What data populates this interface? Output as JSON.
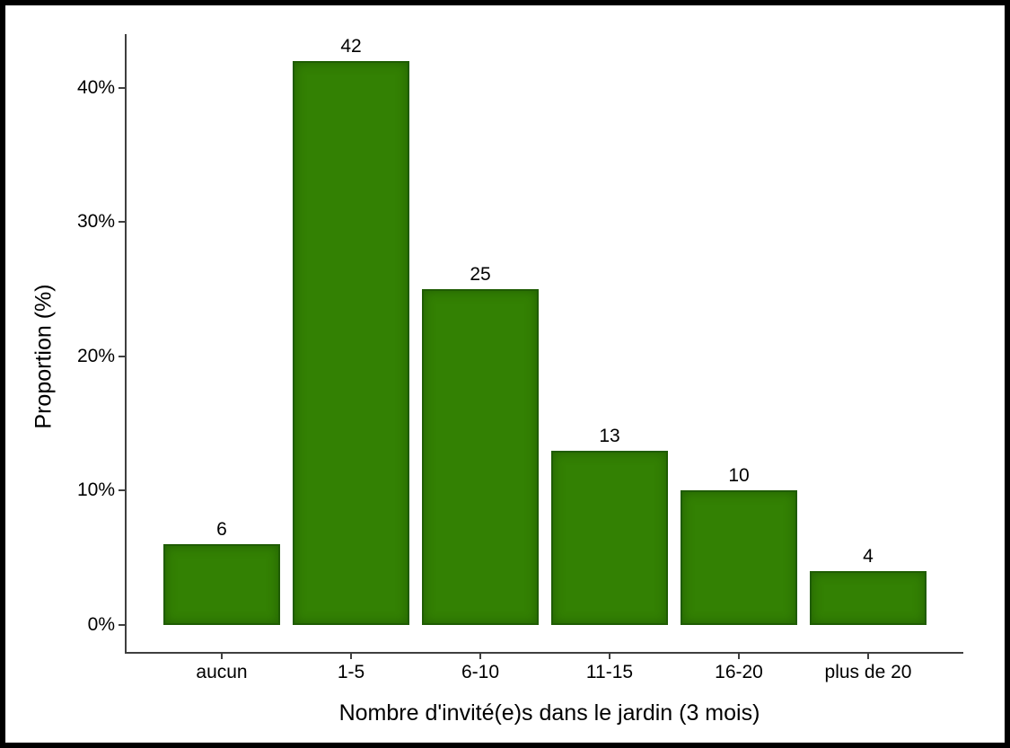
{
  "chart_data": {
    "type": "bar",
    "title": "",
    "categories": [
      "aucun",
      "1-5",
      "6-10",
      "11-15",
      "16-20",
      "plus de 20"
    ],
    "values": [
      6,
      42,
      25,
      13,
      10,
      4
    ],
    "bar_value_labels": [
      "6",
      "42",
      "25",
      "13",
      "10",
      "4"
    ],
    "xlabel": "Nombre d'invité(e)s dans le jardin (3 mois)",
    "ylabel": "Proportion (%)",
    "y_ticks": [
      {
        "value": 0,
        "label": "0%"
      },
      {
        "value": 10,
        "label": "10%"
      },
      {
        "value": 20,
        "label": "20%"
      },
      {
        "value": 30,
        "label": "30%"
      },
      {
        "value": 40,
        "label": "40%"
      }
    ],
    "ylim": [
      0,
      44
    ],
    "grid": false,
    "legend": false,
    "colors": {
      "bar_fill": "#338103",
      "bar_border": "#1F5C03",
      "axis": "#3F3F3F",
      "text": "#000000",
      "background": "#FFFFFF",
      "frame_border": "#000000"
    }
  }
}
